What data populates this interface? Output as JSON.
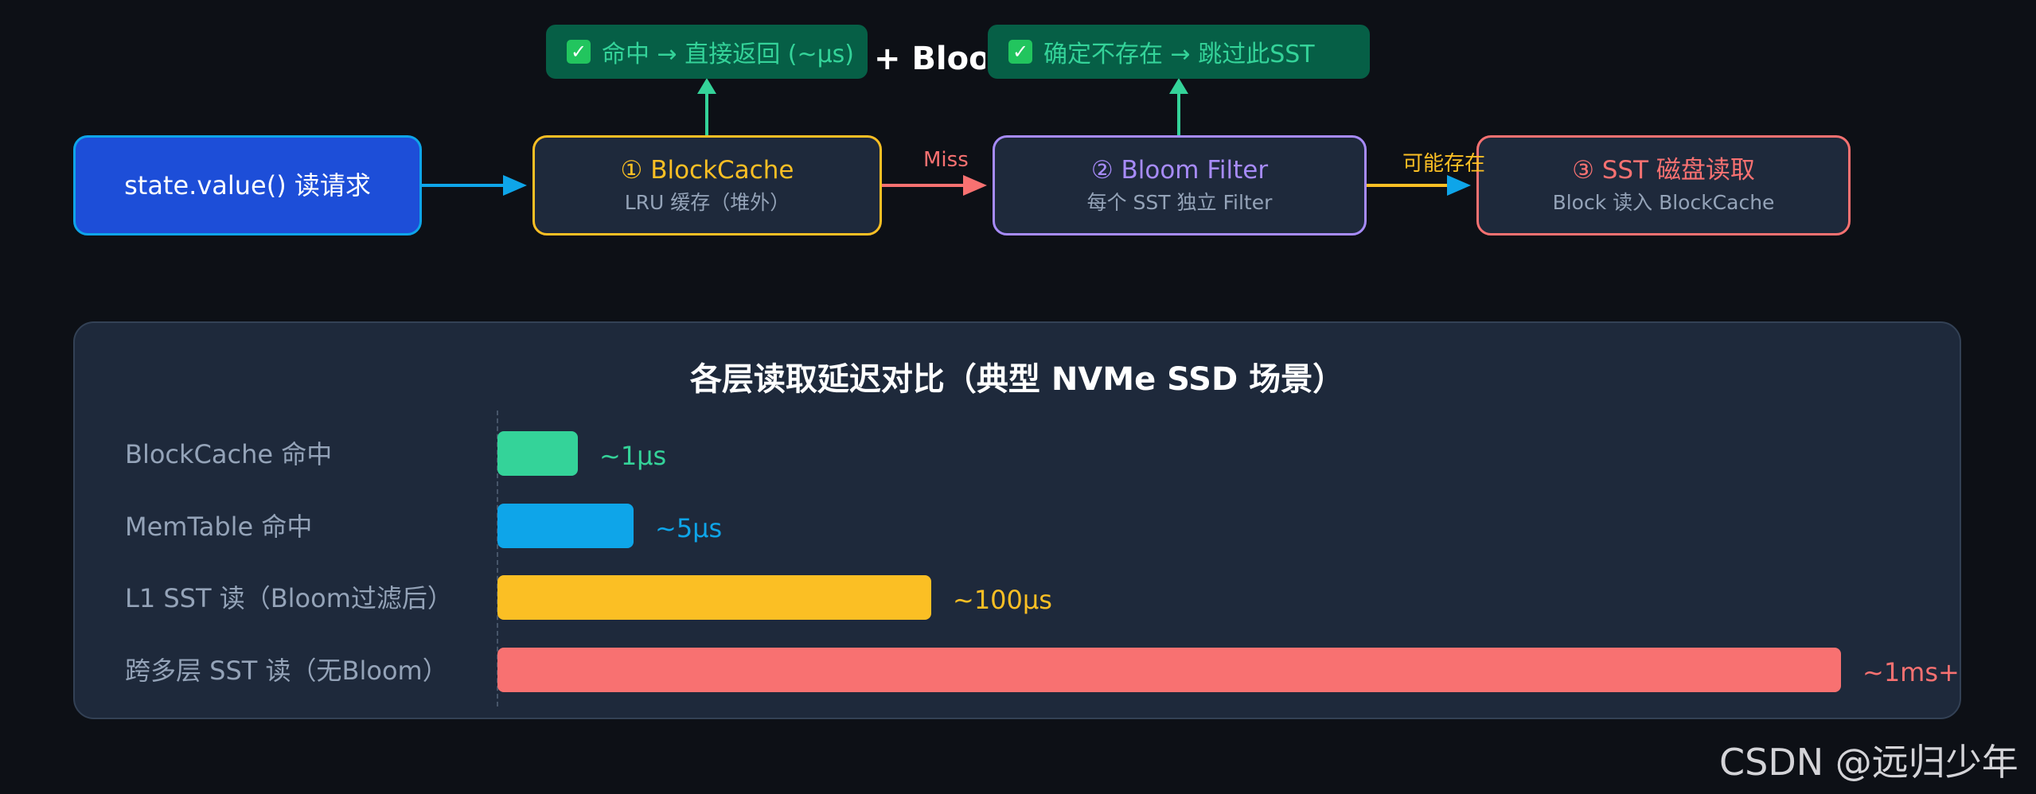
{
  "colors": {
    "background": "#0d1016",
    "panel": "#1e293b",
    "state_fill": "#1d4ed8",
    "cache": "#fbbf24",
    "bloom": "#a78bfa",
    "sst": "#f87171",
    "success": "#34d399",
    "arrow_main": "#0ea5e9",
    "arrow_miss": "#f87171",
    "arrow_maybe": "#fbbf24",
    "arrow_up": "#34d399"
  },
  "diagram": {
    "partial_title": "+ Bloom",
    "nodes": {
      "request": {
        "label": "state.value() 读请求"
      },
      "block_cache": {
        "label": "① BlockCache",
        "sub": "LRU 缓存（堆外）"
      },
      "bloom_filter": {
        "label": "② Bloom Filter",
        "sub": "每个 SST 独立 Filter"
      },
      "sst_read": {
        "label": "③ SST 磁盘读取",
        "sub": "Block 读入 BlockCache"
      }
    },
    "results": {
      "hit": {
        "icon": "check-icon",
        "text": "命中 → 直接返回 (~μs)"
      },
      "skip": {
        "icon": "check-icon",
        "text": "确定不存在 → 跳过此SST"
      }
    },
    "edges": {
      "miss": "Miss",
      "maybe": "可能存在"
    }
  },
  "latency_panel": {
    "title": "各层读取延迟对比（典型 NVMe SSD 场景）"
  },
  "chart_data": {
    "type": "bar",
    "orientation": "horizontal",
    "title": "各层读取延迟对比（典型 NVMe SSD 场景）",
    "categories": [
      "BlockCache 命中",
      "MemTable 命中",
      "L1 SST 读（Bloom过滤后）",
      "跨多层 SST 读（无Bloom）"
    ],
    "bar_lengths": [
      0.058,
      0.098,
      0.313,
      0.97
    ],
    "value_labels": [
      "~1μs",
      "~5μs",
      "~100μs",
      "~1ms+"
    ],
    "colors": [
      "#34d399",
      "#0ea5e9",
      "#fbbf24",
      "#f87171"
    ],
    "grid": false,
    "legend": "none"
  },
  "watermark": "CSDN @远归少年"
}
